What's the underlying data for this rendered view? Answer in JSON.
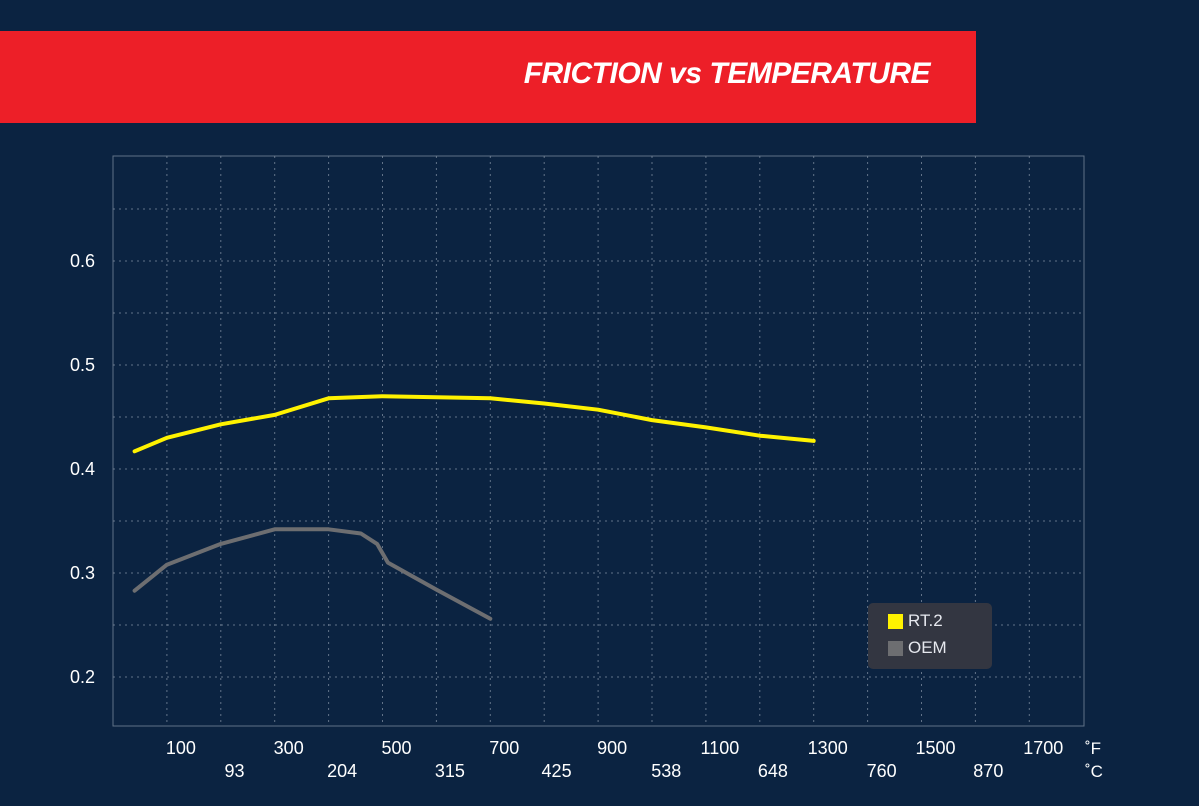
{
  "title": "FRICTION vs TEMPERATURE",
  "colors": {
    "background": "#0b2341",
    "banner": "#ed1f28",
    "rt2": "#fff200",
    "oem": "#6d6e71"
  },
  "chart_data": {
    "type": "line",
    "title": "FRICTION vs TEMPERATURE",
    "x_unit_primary": "˚F",
    "x_unit_secondary": "˚C",
    "xlim": [
      0,
      1800
    ],
    "ylim": [
      0.15,
      0.7
    ],
    "grid": true,
    "legend_position": "bottom-right",
    "x_ticks_f": [
      "100",
      "300",
      "500",
      "700",
      "900",
      "1100",
      "1300",
      "1500",
      "1700"
    ],
    "x_ticks_c": [
      "93",
      "204",
      "315",
      "425",
      "538",
      "648",
      "760",
      "870"
    ],
    "y_ticks": [
      "0.2",
      "0.3",
      "0.4",
      "0.5",
      "0.6"
    ],
    "series": [
      {
        "name": "RT.2",
        "color": "#fff200",
        "x": [
          40,
          100,
          200,
          300,
          400,
          500,
          600,
          700,
          800,
          900,
          1000,
          1100,
          1200,
          1300
        ],
        "y": [
          0.417,
          0.43,
          0.443,
          0.452,
          0.468,
          0.47,
          0.469,
          0.468,
          0.463,
          0.457,
          0.447,
          0.44,
          0.432,
          0.427
        ]
      },
      {
        "name": "OEM",
        "color": "#6d6e71",
        "x": [
          40,
          100,
          200,
          300,
          400,
          460,
          490,
          510,
          600,
          700
        ],
        "y": [
          0.283,
          0.308,
          0.328,
          0.342,
          0.342,
          0.338,
          0.328,
          0.31,
          0.284,
          0.256
        ]
      }
    ]
  }
}
